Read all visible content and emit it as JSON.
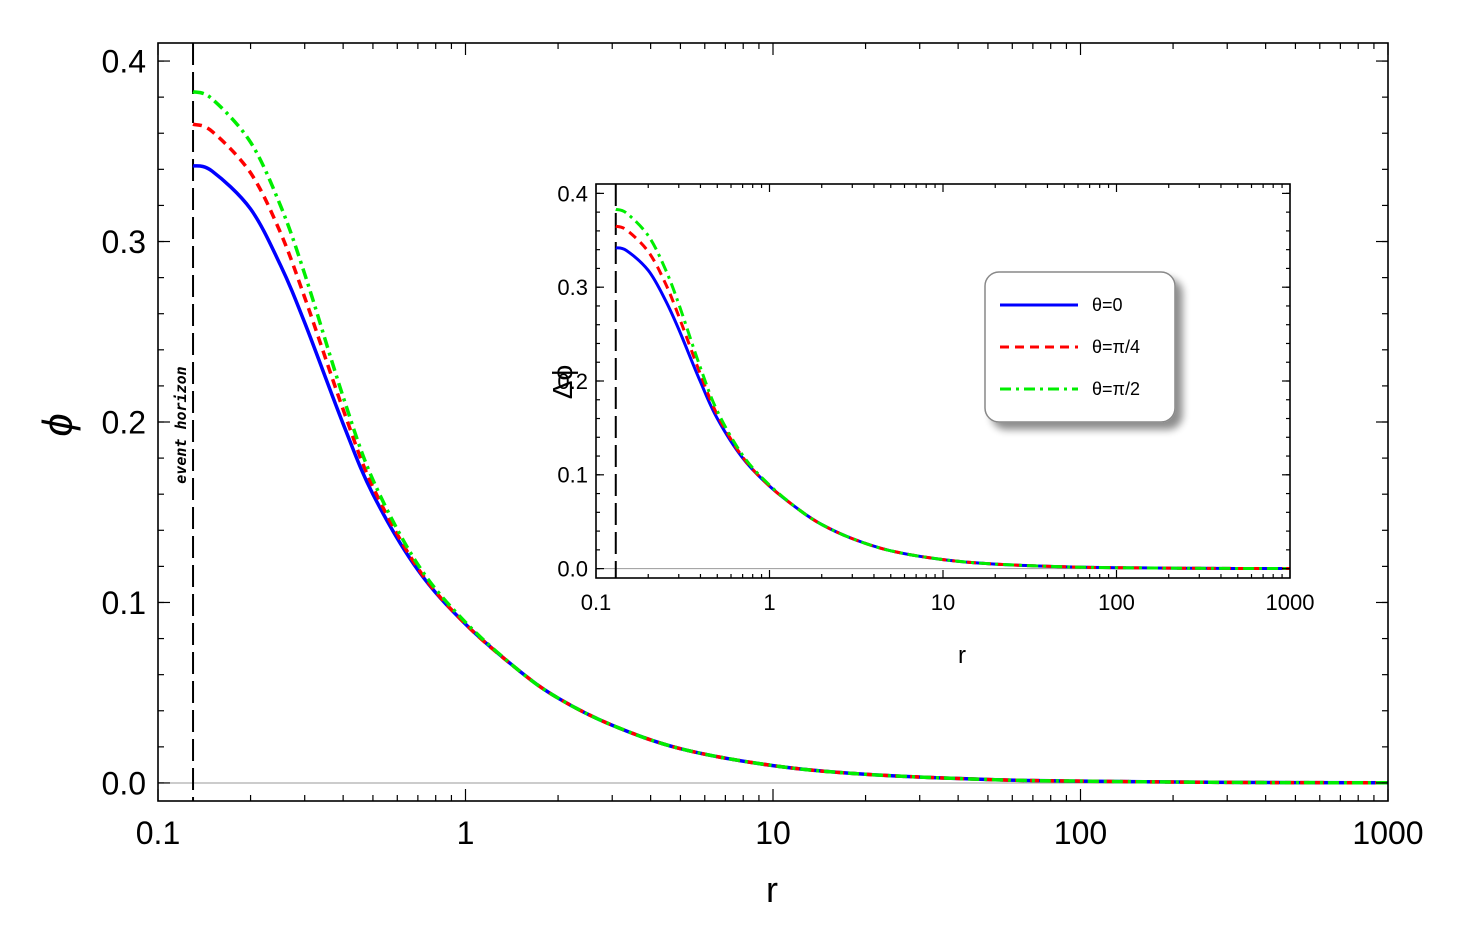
{
  "chart_data": [
    {
      "id": "main",
      "type": "line",
      "xlabel": "r",
      "ylabel": "ϕ",
      "xscale": "log",
      "xlim": [
        0.1,
        1000
      ],
      "ylim": [
        -0.01,
        0.41
      ],
      "x_tick_labels": [
        "0.1",
        "1",
        "10",
        "100",
        "1000"
      ],
      "x_ticks": [
        0.1,
        1,
        10,
        100,
        1000
      ],
      "y_tick_labels": [
        "0.0",
        "0.1",
        "0.2",
        "0.3",
        "0.4"
      ],
      "y_ticks": [
        0,
        0.1,
        0.2,
        0.3,
        0.4
      ],
      "horizon_r": 0.13,
      "annotation": "event horizon",
      "x": [
        0.13,
        0.15,
        0.2,
        0.25,
        0.3,
        0.4,
        0.5,
        0.7,
        1,
        1.5,
        2,
        3,
        5,
        10,
        20,
        50,
        100,
        300,
        1000
      ],
      "series": [
        {
          "name": "θ=0",
          "color": "#0000ff",
          "style": "solid",
          "values": [
            0.342,
            0.339,
            0.318,
            0.287,
            0.255,
            0.199,
            0.16,
            0.118,
            0.088,
            0.062,
            0.047,
            0.032,
            0.019,
            0.0096,
            0.0048,
            0.0019,
            0.001,
            0.0003,
            0.0001
          ]
        },
        {
          "name": "θ=π/4",
          "color": "#ff0000",
          "style": "dashed",
          "values": [
            0.365,
            0.361,
            0.338,
            0.305,
            0.269,
            0.207,
            0.164,
            0.119,
            0.088,
            0.062,
            0.047,
            0.032,
            0.019,
            0.0096,
            0.0048,
            0.0019,
            0.001,
            0.0003,
            0.0001
          ]
        },
        {
          "name": "θ=π/2",
          "color": "#00ee00",
          "style": "dashdot",
          "values": [
            0.383,
            0.379,
            0.355,
            0.32,
            0.282,
            0.214,
            0.168,
            0.121,
            0.089,
            0.062,
            0.047,
            0.032,
            0.019,
            0.0096,
            0.0048,
            0.0019,
            0.001,
            0.0003,
            0.0001
          ]
        }
      ]
    },
    {
      "id": "inset",
      "type": "line",
      "xlabel": "r",
      "ylabel": "Δϕ",
      "xscale": "log",
      "xlim": [
        0.1,
        1000
      ],
      "ylim": [
        -0.01,
        0.41
      ],
      "x_tick_labels": [
        "0.1",
        "1",
        "10",
        "100",
        "1000"
      ],
      "x_ticks": [
        0.1,
        1,
        10,
        100,
        1000
      ],
      "y_tick_labels": [
        "0.0",
        "0.1",
        "0.2",
        "0.3",
        "0.4"
      ],
      "y_ticks": [
        0,
        0.1,
        0.2,
        0.3,
        0.4
      ],
      "horizon_r": 0.13,
      "legend_position": "top-right",
      "x": [
        0.13,
        0.15,
        0.2,
        0.25,
        0.3,
        0.4,
        0.5,
        0.7,
        1,
        1.5,
        2,
        3,
        5,
        10,
        20,
        50,
        100,
        300,
        1000
      ],
      "series": [
        {
          "name": "θ=0",
          "color": "#0000ff",
          "style": "solid",
          "values": [
            0.342,
            0.339,
            0.318,
            0.287,
            0.255,
            0.199,
            0.16,
            0.118,
            0.088,
            0.062,
            0.047,
            0.032,
            0.019,
            0.0096,
            0.0048,
            0.0019,
            0.001,
            0.0003,
            0.0001
          ]
        },
        {
          "name": "θ=π/4",
          "color": "#ff0000",
          "style": "dashed",
          "values": [
            0.365,
            0.361,
            0.338,
            0.305,
            0.269,
            0.207,
            0.164,
            0.119,
            0.088,
            0.062,
            0.047,
            0.032,
            0.019,
            0.0096,
            0.0048,
            0.0019,
            0.001,
            0.0003,
            0.0001
          ]
        },
        {
          "name": "θ=π/2",
          "color": "#00ee00",
          "style": "dashdot",
          "values": [
            0.383,
            0.379,
            0.355,
            0.32,
            0.282,
            0.214,
            0.168,
            0.121,
            0.089,
            0.062,
            0.047,
            0.032,
            0.019,
            0.0096,
            0.0048,
            0.0019,
            0.001,
            0.0003,
            0.0001
          ]
        }
      ]
    }
  ]
}
